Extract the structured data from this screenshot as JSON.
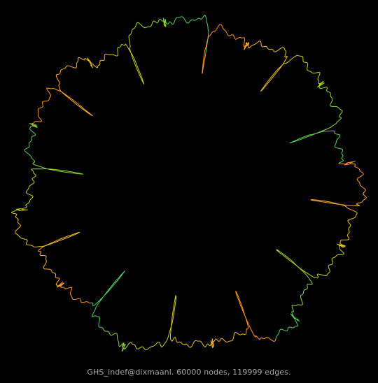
{
  "graph": {
    "caption": "GHS_indef@dixmaanl. 60000 nodes, 119999 edges.",
    "background_color": "#000000",
    "edge_colors": [
      "#ffb030",
      "#e8c020",
      "#c8d020",
      "#8ed83a",
      "#56d060",
      "#ff9428"
    ]
  }
}
